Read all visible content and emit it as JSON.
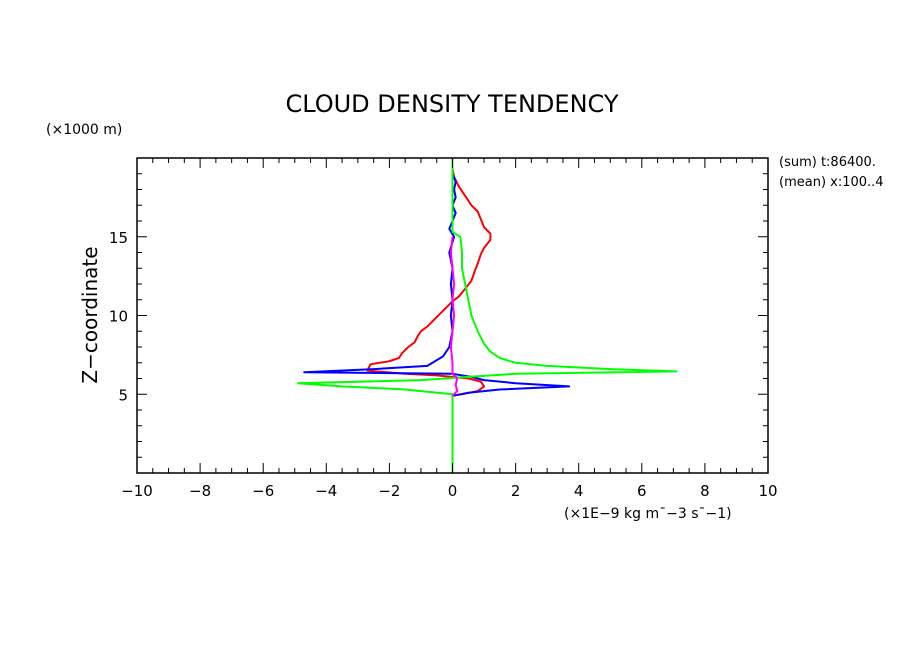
{
  "chart_data": {
    "type": "line",
    "title": "CLOUD DENSITY TENDENCY",
    "ylabel": "Z−coordinate",
    "yunit": "(×1000 m)",
    "xunit": "(×1E−9 kg m¯−3 s¯−1)",
    "side_notes": [
      "(sum) t:86400.",
      "(mean) x:100..4"
    ],
    "xlim": [
      -10,
      10
    ],
    "ylim": [
      0,
      20
    ],
    "xticks": [
      -10,
      -8,
      -6,
      -4,
      -2,
      0,
      2,
      4,
      6,
      8,
      10
    ],
    "yticks": [
      5,
      10,
      15
    ],
    "grid": false,
    "series": [
      {
        "color": "#ff0000",
        "points": [
          [
            0,
            4.9
          ],
          [
            0.3,
            5.0
          ],
          [
            0.8,
            5.2
          ],
          [
            1.0,
            5.5
          ],
          [
            0.9,
            5.8
          ],
          [
            0.5,
            6.0
          ],
          [
            -0.5,
            6.2
          ],
          [
            -1.5,
            6.3
          ],
          [
            -2.7,
            6.5
          ],
          [
            -2.6,
            6.9
          ],
          [
            -2.0,
            7.1
          ],
          [
            -1.7,
            7.3
          ],
          [
            -1.6,
            7.6
          ],
          [
            -1.4,
            8.0
          ],
          [
            -1.2,
            8.3
          ],
          [
            -1.1,
            8.7
          ],
          [
            -1.0,
            9.0
          ],
          [
            -0.8,
            9.3
          ],
          [
            -0.6,
            9.7
          ],
          [
            -0.4,
            10.1
          ],
          [
            -0.2,
            10.5
          ],
          [
            0.0,
            10.9
          ],
          [
            0.2,
            11.2
          ],
          [
            0.4,
            11.7
          ],
          [
            0.6,
            12.2
          ],
          [
            0.7,
            12.8
          ],
          [
            0.8,
            13.3
          ],
          [
            0.9,
            13.9
          ],
          [
            1.0,
            14.3
          ],
          [
            1.2,
            14.8
          ],
          [
            1.2,
            15.2
          ],
          [
            1.0,
            15.6
          ],
          [
            0.9,
            16.1
          ],
          [
            0.8,
            16.6
          ],
          [
            0.6,
            17.0
          ],
          [
            0.4,
            17.6
          ],
          [
            0.2,
            18.2
          ],
          [
            0.05,
            18.8
          ],
          [
            0.0,
            19.3
          ]
        ]
      },
      {
        "color": "#0000ff",
        "points": [
          [
            0,
            4.9
          ],
          [
            0.5,
            5.1
          ],
          [
            1.5,
            5.3
          ],
          [
            3.7,
            5.5
          ],
          [
            2.0,
            5.7
          ],
          [
            1.0,
            5.9
          ],
          [
            0.6,
            6.1
          ],
          [
            0.0,
            6.3
          ],
          [
            -4.7,
            6.4
          ],
          [
            -2.5,
            6.6
          ],
          [
            -0.8,
            6.8
          ],
          [
            -0.3,
            7.4
          ],
          [
            -0.1,
            8.0
          ],
          [
            0.0,
            9.0
          ],
          [
            -0.05,
            10.0
          ],
          [
            0.0,
            11.0
          ],
          [
            -0.05,
            12.0
          ],
          [
            0.0,
            13.0
          ],
          [
            -0.1,
            14.0
          ],
          [
            0.05,
            15.0
          ],
          [
            -0.1,
            15.5
          ],
          [
            0.0,
            16.0
          ],
          [
            0.1,
            16.5
          ],
          [
            0.0,
            17.0
          ],
          [
            0.1,
            17.5
          ],
          [
            0.05,
            18.0
          ],
          [
            0.1,
            18.5
          ],
          [
            0.0,
            19.0
          ]
        ]
      },
      {
        "color": "#00ff00",
        "points": [
          [
            0,
            0
          ],
          [
            0,
            4.6
          ],
          [
            0,
            5.0
          ],
          [
            -1.5,
            5.3
          ],
          [
            -3.5,
            5.5
          ],
          [
            -4.9,
            5.7
          ],
          [
            -1.0,
            5.9
          ],
          [
            0.5,
            6.1
          ],
          [
            2.0,
            6.3
          ],
          [
            7.1,
            6.45
          ],
          [
            5.0,
            6.6
          ],
          [
            3.0,
            6.8
          ],
          [
            2.0,
            7.0
          ],
          [
            1.5,
            7.3
          ],
          [
            1.2,
            7.7
          ],
          [
            1.0,
            8.2
          ],
          [
            0.8,
            9.0
          ],
          [
            0.6,
            10.0
          ],
          [
            0.5,
            11.0
          ],
          [
            0.4,
            12.0
          ],
          [
            0.3,
            13.0
          ],
          [
            0.3,
            14.0
          ],
          [
            0.25,
            15.0
          ],
          [
            0.0,
            15.3
          ],
          [
            0.0,
            16.5
          ],
          [
            0.0,
            20.0
          ]
        ]
      },
      {
        "color": "#ff00ff",
        "points": [
          [
            0,
            4.9
          ],
          [
            0.15,
            5.2
          ],
          [
            0.1,
            5.6
          ],
          [
            0.15,
            6.0
          ],
          [
            0.0,
            6.3
          ],
          [
            0.0,
            7.0
          ],
          [
            -0.05,
            8.0
          ],
          [
            0.0,
            9.0
          ],
          [
            0.05,
            10.0
          ],
          [
            0.0,
            11.0
          ],
          [
            0.05,
            12.0
          ],
          [
            0.0,
            13.0
          ],
          [
            -0.05,
            14.0
          ],
          [
            0.0,
            15.0
          ]
        ]
      }
    ]
  }
}
